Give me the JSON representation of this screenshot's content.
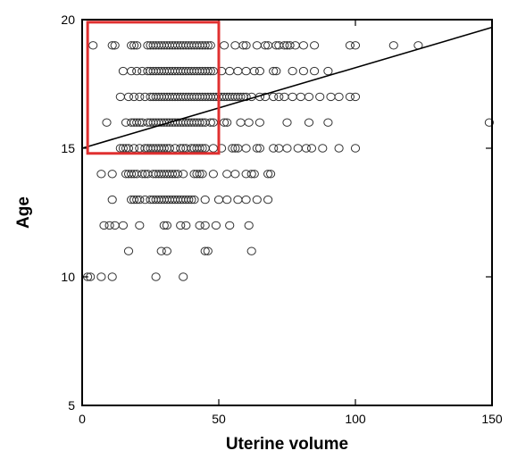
{
  "chart_data": {
    "type": "scatter",
    "title": "",
    "xlabel": "Uterine volume",
    "ylabel": "Age",
    "xlim": [
      0,
      150
    ],
    "ylim": [
      5,
      20
    ],
    "xticks": [
      0,
      50,
      100,
      150
    ],
    "yticks": [
      5,
      10,
      15,
      20
    ],
    "xtick_labels": [
      "0",
      "50",
      "100",
      "150"
    ],
    "ytick_labels": [
      "5",
      "10",
      "15",
      "20"
    ],
    "grid": false,
    "marker": "open-circle",
    "series": [
      {
        "name": "",
        "points": [
          [
            4,
            19
          ],
          [
            11,
            19
          ],
          [
            12,
            19
          ],
          [
            18,
            19
          ],
          [
            19,
            19
          ],
          [
            20,
            19
          ],
          [
            24,
            19
          ],
          [
            25,
            19
          ],
          [
            26,
            19
          ],
          [
            27,
            19
          ],
          [
            28,
            19
          ],
          [
            29,
            19
          ],
          [
            30,
            19
          ],
          [
            31,
            19
          ],
          [
            32,
            19
          ],
          [
            33,
            19
          ],
          [
            34,
            19
          ],
          [
            35,
            19
          ],
          [
            36,
            19
          ],
          [
            37,
            19
          ],
          [
            38,
            19
          ],
          [
            39,
            19
          ],
          [
            40,
            19
          ],
          [
            41,
            19
          ],
          [
            42,
            19
          ],
          [
            43,
            19
          ],
          [
            44,
            19
          ],
          [
            45,
            19
          ],
          [
            46,
            19
          ],
          [
            47,
            19
          ],
          [
            52,
            19
          ],
          [
            56,
            19
          ],
          [
            59,
            19
          ],
          [
            60,
            19
          ],
          [
            64,
            19
          ],
          [
            67,
            19
          ],
          [
            68,
            19
          ],
          [
            71,
            19
          ],
          [
            72,
            19
          ],
          [
            74,
            19
          ],
          [
            75,
            19
          ],
          [
            76,
            19
          ],
          [
            78,
            19
          ],
          [
            81,
            19
          ],
          [
            85,
            19
          ],
          [
            98,
            19
          ],
          [
            100,
            19
          ],
          [
            114,
            19
          ],
          [
            123,
            19
          ],
          [
            15,
            18
          ],
          [
            18,
            18
          ],
          [
            20,
            18
          ],
          [
            22,
            18
          ],
          [
            24,
            18
          ],
          [
            25,
            18
          ],
          [
            26,
            18
          ],
          [
            27,
            18
          ],
          [
            28,
            18
          ],
          [
            29,
            18
          ],
          [
            30,
            18
          ],
          [
            31,
            18
          ],
          [
            32,
            18
          ],
          [
            33,
            18
          ],
          [
            34,
            18
          ],
          [
            35,
            18
          ],
          [
            36,
            18
          ],
          [
            37,
            18
          ],
          [
            38,
            18
          ],
          [
            39,
            18
          ],
          [
            40,
            18
          ],
          [
            41,
            18
          ],
          [
            42,
            18
          ],
          [
            43,
            18
          ],
          [
            44,
            18
          ],
          [
            45,
            18
          ],
          [
            46,
            18
          ],
          [
            47,
            18
          ],
          [
            48,
            18
          ],
          [
            51,
            18
          ],
          [
            54,
            18
          ],
          [
            57,
            18
          ],
          [
            60,
            18
          ],
          [
            63,
            18
          ],
          [
            65,
            18
          ],
          [
            70,
            18
          ],
          [
            71,
            18
          ],
          [
            77,
            18
          ],
          [
            81,
            18
          ],
          [
            85,
            18
          ],
          [
            90,
            18
          ],
          [
            14,
            17
          ],
          [
            17,
            17
          ],
          [
            19,
            17
          ],
          [
            21,
            17
          ],
          [
            23,
            17
          ],
          [
            25,
            17
          ],
          [
            26,
            17
          ],
          [
            27,
            17
          ],
          [
            28,
            17
          ],
          [
            29,
            17
          ],
          [
            30,
            17
          ],
          [
            31,
            17
          ],
          [
            32,
            17
          ],
          [
            33,
            17
          ],
          [
            34,
            17
          ],
          [
            35,
            17
          ],
          [
            36,
            17
          ],
          [
            37,
            17
          ],
          [
            38,
            17
          ],
          [
            39,
            17
          ],
          [
            40,
            17
          ],
          [
            41,
            17
          ],
          [
            42,
            17
          ],
          [
            43,
            17
          ],
          [
            44,
            17
          ],
          [
            45,
            17
          ],
          [
            46,
            17
          ],
          [
            47,
            17
          ],
          [
            48,
            17
          ],
          [
            49,
            17
          ],
          [
            50,
            17
          ],
          [
            51,
            17
          ],
          [
            52,
            17
          ],
          [
            53,
            17
          ],
          [
            54,
            17
          ],
          [
            55,
            17
          ],
          [
            56,
            17
          ],
          [
            57,
            17
          ],
          [
            58,
            17
          ],
          [
            59,
            17
          ],
          [
            60,
            17
          ],
          [
            62,
            17
          ],
          [
            65,
            17
          ],
          [
            67,
            17
          ],
          [
            70,
            17
          ],
          [
            72,
            17
          ],
          [
            74,
            17
          ],
          [
            77,
            17
          ],
          [
            80,
            17
          ],
          [
            83,
            17
          ],
          [
            87,
            17
          ],
          [
            91,
            17
          ],
          [
            94,
            17
          ],
          [
            98,
            17
          ],
          [
            100,
            17
          ],
          [
            9,
            16
          ],
          [
            16,
            16
          ],
          [
            18,
            16
          ],
          [
            19,
            16
          ],
          [
            20,
            16
          ],
          [
            21,
            16
          ],
          [
            22,
            16
          ],
          [
            24,
            16
          ],
          [
            25,
            16
          ],
          [
            26,
            16
          ],
          [
            27,
            16
          ],
          [
            28,
            16
          ],
          [
            29,
            16
          ],
          [
            30,
            16
          ],
          [
            31,
            16
          ],
          [
            32,
            16
          ],
          [
            33,
            16
          ],
          [
            34,
            16
          ],
          [
            35,
            16
          ],
          [
            36,
            16
          ],
          [
            37,
            16
          ],
          [
            38,
            16
          ],
          [
            39,
            16
          ],
          [
            40,
            16
          ],
          [
            41,
            16
          ],
          [
            42,
            16
          ],
          [
            43,
            16
          ],
          [
            44,
            16
          ],
          [
            45,
            16
          ],
          [
            47,
            16
          ],
          [
            48,
            16
          ],
          [
            52,
            16
          ],
          [
            53,
            16
          ],
          [
            58,
            16
          ],
          [
            61,
            16
          ],
          [
            65,
            16
          ],
          [
            75,
            16
          ],
          [
            83,
            16
          ],
          [
            90,
            16
          ],
          [
            149,
            16
          ],
          [
            14,
            15
          ],
          [
            15,
            15
          ],
          [
            16,
            15
          ],
          [
            17,
            15
          ],
          [
            19,
            15
          ],
          [
            21,
            15
          ],
          [
            23,
            15
          ],
          [
            24,
            15
          ],
          [
            25,
            15
          ],
          [
            26,
            15
          ],
          [
            27,
            15
          ],
          [
            28,
            15
          ],
          [
            29,
            15
          ],
          [
            30,
            15
          ],
          [
            31,
            15
          ],
          [
            32,
            15
          ],
          [
            34,
            15
          ],
          [
            36,
            15
          ],
          [
            37,
            15
          ],
          [
            38,
            15
          ],
          [
            40,
            15
          ],
          [
            41,
            15
          ],
          [
            42,
            15
          ],
          [
            43,
            15
          ],
          [
            44,
            15
          ],
          [
            45,
            15
          ],
          [
            48,
            15
          ],
          [
            51,
            15
          ],
          [
            55,
            15
          ],
          [
            56,
            15
          ],
          [
            57,
            15
          ],
          [
            60,
            15
          ],
          [
            64,
            15
          ],
          [
            65,
            15
          ],
          [
            70,
            15
          ],
          [
            72,
            15
          ],
          [
            75,
            15
          ],
          [
            79,
            15
          ],
          [
            82,
            15
          ],
          [
            84,
            15
          ],
          [
            88,
            15
          ],
          [
            94,
            15
          ],
          [
            100,
            15
          ],
          [
            7,
            14
          ],
          [
            11,
            14
          ],
          [
            16,
            14
          ],
          [
            17,
            14
          ],
          [
            18,
            14
          ],
          [
            19,
            14
          ],
          [
            20,
            14
          ],
          [
            22,
            14
          ],
          [
            23,
            14
          ],
          [
            24,
            14
          ],
          [
            26,
            14
          ],
          [
            27,
            14
          ],
          [
            28,
            14
          ],
          [
            29,
            14
          ],
          [
            30,
            14
          ],
          [
            31,
            14
          ],
          [
            32,
            14
          ],
          [
            33,
            14
          ],
          [
            34,
            14
          ],
          [
            35,
            14
          ],
          [
            37,
            14
          ],
          [
            41,
            14
          ],
          [
            42,
            14
          ],
          [
            43,
            14
          ],
          [
            44,
            14
          ],
          [
            48,
            14
          ],
          [
            53,
            14
          ],
          [
            56,
            14
          ],
          [
            60,
            14
          ],
          [
            62,
            14
          ],
          [
            63,
            14
          ],
          [
            68,
            14
          ],
          [
            69,
            14
          ],
          [
            11,
            13
          ],
          [
            18,
            13
          ],
          [
            19,
            13
          ],
          [
            20,
            13
          ],
          [
            21,
            13
          ],
          [
            23,
            13
          ],
          [
            25,
            13
          ],
          [
            26,
            13
          ],
          [
            27,
            13
          ],
          [
            28,
            13
          ],
          [
            29,
            13
          ],
          [
            30,
            13
          ],
          [
            31,
            13
          ],
          [
            32,
            13
          ],
          [
            33,
            13
          ],
          [
            34,
            13
          ],
          [
            35,
            13
          ],
          [
            36,
            13
          ],
          [
            37,
            13
          ],
          [
            38,
            13
          ],
          [
            39,
            13
          ],
          [
            40,
            13
          ],
          [
            41,
            13
          ],
          [
            45,
            13
          ],
          [
            50,
            13
          ],
          [
            53,
            13
          ],
          [
            57,
            13
          ],
          [
            60,
            13
          ],
          [
            64,
            13
          ],
          [
            68,
            13
          ],
          [
            8,
            12
          ],
          [
            10,
            12
          ],
          [
            12,
            12
          ],
          [
            15,
            12
          ],
          [
            21,
            12
          ],
          [
            30,
            12
          ],
          [
            31,
            12
          ],
          [
            36,
            12
          ],
          [
            38,
            12
          ],
          [
            43,
            12
          ],
          [
            45,
            12
          ],
          [
            49,
            12
          ],
          [
            54,
            12
          ],
          [
            61,
            12
          ],
          [
            17,
            11
          ],
          [
            29,
            11
          ],
          [
            31,
            11
          ],
          [
            45,
            11
          ],
          [
            46,
            11
          ],
          [
            62,
            11
          ],
          [
            2,
            10
          ],
          [
            3,
            10
          ],
          [
            7,
            10
          ],
          [
            11,
            10
          ],
          [
            27,
            10
          ],
          [
            37,
            10
          ]
        ]
      }
    ],
    "regression_line": {
      "x": [
        0,
        150
      ],
      "y": [
        15,
        19.7
      ]
    },
    "highlight_box": {
      "x": [
        2,
        50
      ],
      "y": [
        14.8,
        19.9
      ],
      "color": "#e03030"
    }
  }
}
